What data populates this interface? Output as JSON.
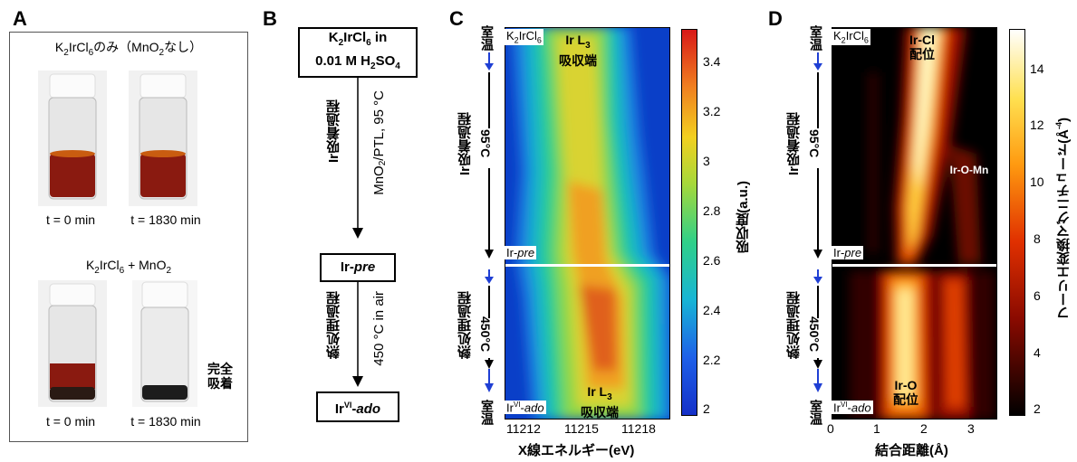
{
  "panels": {
    "A": "A",
    "B": "B",
    "C": "C",
    "D": "D"
  },
  "panelA": {
    "top_caption": "K2IrCl6のみ（MnO2なし）",
    "top_t0": "t = 0 min",
    "top_t1": "t = 1830 min",
    "bottom_caption": "K2IrCl6 + MnO2",
    "bottom_t0": "t = 0 min",
    "bottom_t1": "t = 1830 min",
    "complete_label": "完全\n吸着"
  },
  "panelB": {
    "start_line1": "K2IrCl6 in",
    "start_line2": "0.01 M H2SO4",
    "step1_process": "Ir吸着過程",
    "step1_condition": "MnO2/PTL, 95 °C",
    "mid_box": "Ir-pre",
    "step2_process": "熱処理過程",
    "step2_condition": "450 °C in air",
    "end_box": "IrVI-ado"
  },
  "panelC": {
    "left_labels": {
      "top": "室温",
      "t1": "95°C",
      "proc1": "Ir吸着過程",
      "t2": "450°C",
      "proc2": "熱処理過程",
      "bottom": "室温"
    },
    "corner_top": "K2IrCl6",
    "corner_mid": "Ir-pre",
    "corner_bottom": "IrVI-ado",
    "edge_top": "Ir L3\n吸収端",
    "edge_bottom": "Ir L3\n吸収端",
    "xlabel": "X線エネルギー(eV)",
    "xticks": [
      "11212",
      "11215",
      "11218"
    ],
    "colorbar_label": "吸収度(a.u.)",
    "colorbar_ticks": [
      "3.4",
      "3.2",
      "3",
      "2.8",
      "2.6",
      "2.4",
      "2.2",
      "2"
    ]
  },
  "panelD": {
    "left_labels": {
      "top": "室温",
      "t1": "95°C",
      "proc1": "Ir吸着過程",
      "t2": "450°C",
      "proc2": "熱処理過程",
      "bottom": "室温"
    },
    "corner_top": "K2IrCl6",
    "corner_mid": "Ir-pre",
    "corner_bottom": "IrVI-ado",
    "annot_cl": "Ir-Cl\n配位",
    "annot_mn": "Ir-O-Mn",
    "annot_o": "Ir-O\n配位",
    "xlabel": "結合距離(Å)",
    "xticks": [
      "0",
      "1",
      "2",
      "3"
    ],
    "colorbar_label": "フーリエ変換マグニチュード(Å-4)",
    "colorbar_ticks": [
      "14",
      "12",
      "10",
      "8",
      "6",
      "4",
      "2"
    ]
  },
  "colors": {
    "arrow_blue": "#1f3fd4",
    "vial_liquid": "#8a1a10",
    "vial_dark": "#2a1a14"
  }
}
